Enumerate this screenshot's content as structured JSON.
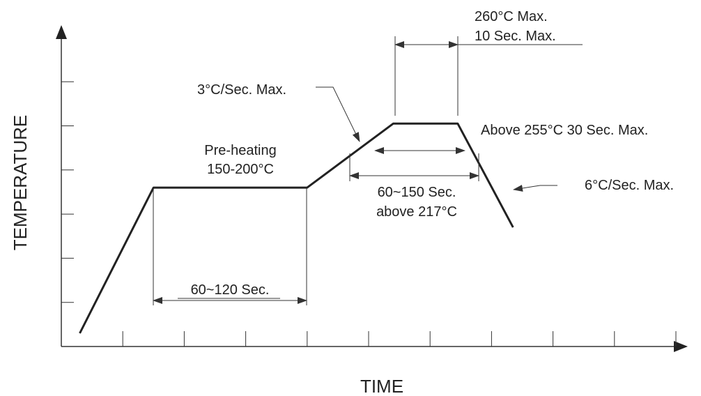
{
  "chart_data": {
    "type": "line",
    "title": "",
    "xlabel": "TIME",
    "ylabel": "TEMPERATURE",
    "x_tick_count": 10,
    "y_tick_count": 6,
    "grid": false,
    "profile_points": [
      {
        "x": 0.3,
        "y": 0.3
      },
      {
        "x": 1.5,
        "y": 3.6
      },
      {
        "x": 4.0,
        "y": 3.6
      },
      {
        "x": 5.4,
        "y": 5.05
      },
      {
        "x": 6.45,
        "y": 5.05
      },
      {
        "x": 7.35,
        "y": 2.7
      }
    ],
    "annotations": {
      "preheat_label_line1": "Pre-heating",
      "preheat_label_line2": "150-200°C",
      "preheat_duration": "60~120 Sec.",
      "ramp_rate": "3°C/Sec. Max.",
      "peak_temp": "260°C Max.",
      "peak_duration": "10 Sec. Max.",
      "above_255": "Above 255°C 30 Sec. Max.",
      "liquidus_duration_line1": "60~150 Sec.",
      "liquidus_duration_line2": "above 217°C",
      "cooling_rate": "6°C/Sec. Max."
    },
    "colors": {
      "line": "#222222",
      "axis": "#333333"
    }
  }
}
